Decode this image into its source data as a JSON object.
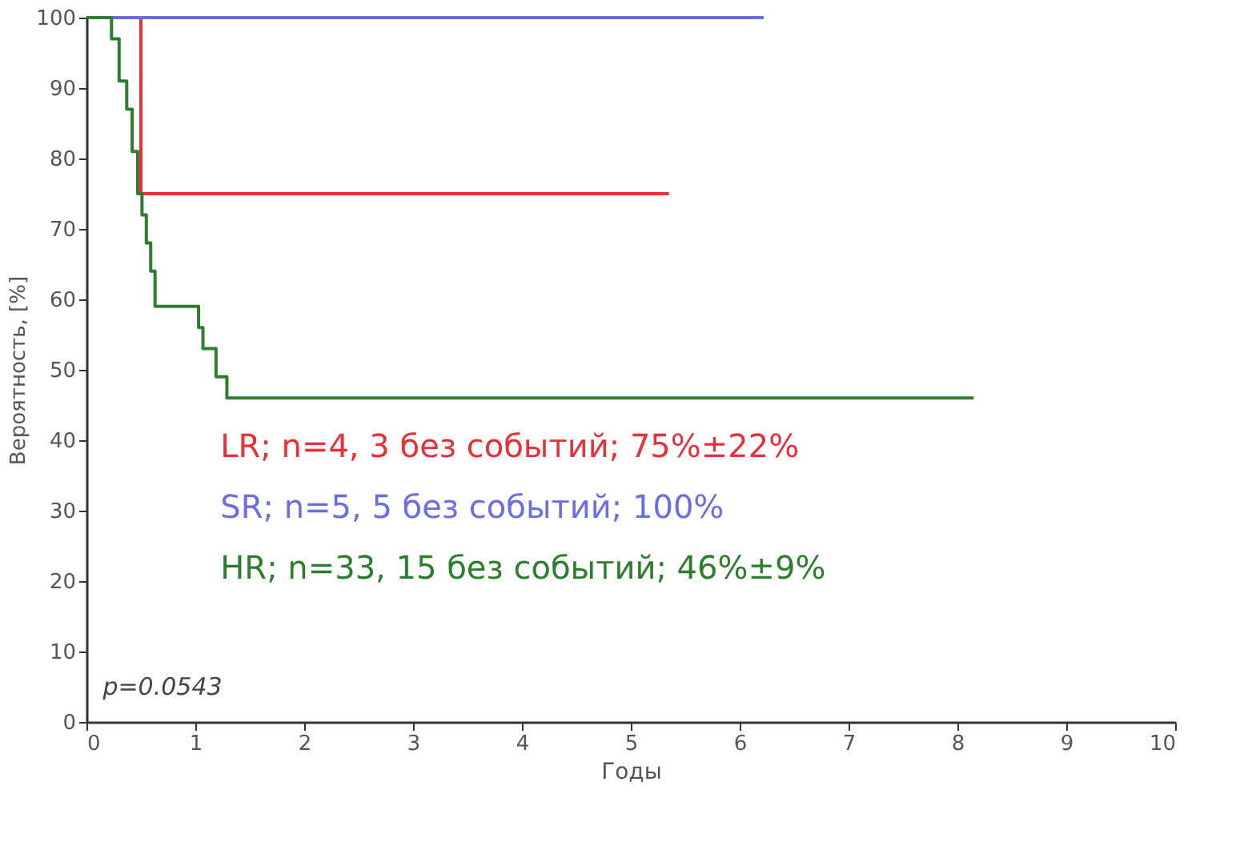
{
  "chart_data": {
    "type": "step",
    "xlabel": "Годы",
    "ylabel": "Вероятность, [%]",
    "xlim": [
      0,
      10
    ],
    "xticks": [
      0,
      1,
      2,
      3,
      4,
      5,
      6,
      7,
      8,
      9,
      10
    ],
    "ylim": [
      0,
      100
    ],
    "yticks": [
      0,
      10,
      20,
      30,
      40,
      50,
      60,
      70,
      80,
      90,
      100
    ],
    "grid": false,
    "line_style": "solid",
    "marker": "none",
    "series": [
      {
        "name": "LR; n=4,     3 без событий; 75%±22%",
        "color": "#e8303a",
        "x": [
          0,
          0.5,
          5.35
        ],
        "values": [
          100,
          75,
          75
        ]
      },
      {
        "name": "SR; n=5,     5 без событий; 100%",
        "color": "#6a6ee0",
        "x": [
          0,
          6.22
        ],
        "values": [
          100,
          100
        ]
      },
      {
        "name": "HR; n=33, 15 без событий; 46%±9%",
        "color": "#2e7d2e",
        "x": [
          0,
          0.23,
          0.3,
          0.37,
          0.42,
          0.47,
          0.51,
          0.55,
          0.59,
          0.63,
          1.03,
          1.07,
          1.19,
          1.29,
          8.15
        ],
        "values": [
          100,
          97,
          91,
          87,
          81,
          75,
          72,
          68,
          64,
          59,
          56,
          53,
          49,
          46,
          46
        ]
      }
    ],
    "annotations": [
      "p=0.0543"
    ]
  }
}
